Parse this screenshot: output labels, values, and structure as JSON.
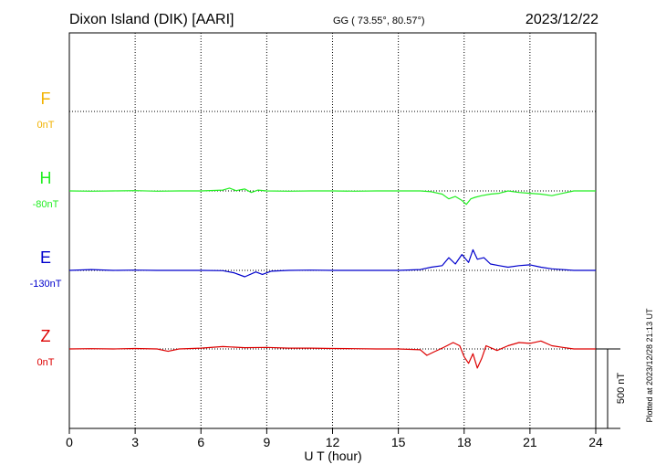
{
  "header": {
    "station": "Dixon Island (DIK)  [AARI]",
    "coords": "GG ( 73.55°,  80.57°)",
    "date": "2023/12/22"
  },
  "footer": {
    "plotted": "Plotted at 2023/12/28 21:13 UT"
  },
  "chart_data": {
    "type": "line",
    "title": "Dixon Island (DIK)  [AARI]",
    "xlabel": "U T (hour)",
    "ylabel": "",
    "xlim": [
      0,
      24
    ],
    "xticks": [
      0,
      3,
      6,
      9,
      12,
      15,
      18,
      21,
      24
    ],
    "grid": true,
    "scale_bar": {
      "label": "500 nT",
      "value": 500
    },
    "series": [
      {
        "name": "F",
        "baseline": "0nT",
        "baseline_value": 0,
        "color": "#f2b200",
        "x": [],
        "values": []
      },
      {
        "name": "H",
        "baseline": "-80nT",
        "baseline_value": -80,
        "color": "#22ee22",
        "x": [
          0,
          1,
          2,
          3,
          4,
          5,
          6,
          7,
          7.3,
          7.6,
          8,
          8.3,
          8.6,
          9,
          10,
          11,
          12,
          13,
          14,
          15,
          16,
          16.5,
          17,
          17.3,
          17.6,
          17.9,
          18.1,
          18.3,
          18.5,
          18.8,
          19.2,
          19.6,
          20,
          20.5,
          21,
          21.5,
          22,
          22.5,
          23,
          24
        ],
        "values": [
          -80,
          -82,
          -80,
          -78,
          -82,
          -80,
          -80,
          -75,
          -62,
          -78,
          -68,
          -90,
          -75,
          -80,
          -82,
          -80,
          -80,
          -82,
          -80,
          -80,
          -80,
          -85,
          -100,
          -130,
          -115,
          -140,
          -165,
          -130,
          -120,
          -110,
          -100,
          -95,
          -80,
          -90,
          -95,
          -100,
          -110,
          -95,
          -80,
          -80
        ]
      },
      {
        "name": "E",
        "baseline": "-130nT",
        "baseline_value": -130,
        "color": "#0000cc",
        "x": [
          0,
          1,
          2,
          3,
          4,
          5,
          6,
          7,
          7.5,
          8,
          8.5,
          8.8,
          9.2,
          10,
          11,
          12,
          13,
          14,
          15,
          16,
          16.5,
          17,
          17.3,
          17.6,
          17.9,
          18.2,
          18.4,
          18.6,
          18.9,
          19.2,
          19.6,
          20,
          20.5,
          21,
          21.5,
          22,
          23,
          24
        ],
        "values": [
          -130,
          -125,
          -130,
          -128,
          -130,
          -130,
          -130,
          -132,
          -145,
          -170,
          -140,
          -155,
          -135,
          -130,
          -128,
          -130,
          -130,
          -130,
          -130,
          -125,
          -110,
          -100,
          -50,
          -90,
          -30,
          -80,
          0,
          -60,
          -50,
          -90,
          -100,
          -110,
          -100,
          -95,
          -110,
          -120,
          -130,
          -130
        ]
      },
      {
        "name": "Z",
        "baseline": "0nT",
        "baseline_value": 0,
        "color": "#dd0000",
        "x": [
          0,
          1,
          2,
          3,
          4,
          4.5,
          5,
          6,
          7,
          8,
          9,
          10,
          11,
          12,
          13,
          14,
          15,
          16,
          16.3,
          16.6,
          17,
          17.5,
          17.8,
          18,
          18.2,
          18.4,
          18.6,
          18.8,
          19,
          19.5,
          20,
          20.5,
          21,
          21.5,
          22,
          22.5,
          23,
          24
        ],
        "values": [
          0,
          2,
          0,
          3,
          0,
          -15,
          0,
          5,
          15,
          8,
          10,
          5,
          5,
          3,
          2,
          0,
          0,
          -5,
          -40,
          -20,
          5,
          40,
          20,
          -50,
          -90,
          -30,
          -120,
          -60,
          20,
          -10,
          20,
          40,
          35,
          50,
          20,
          10,
          0,
          0
        ]
      }
    ]
  }
}
